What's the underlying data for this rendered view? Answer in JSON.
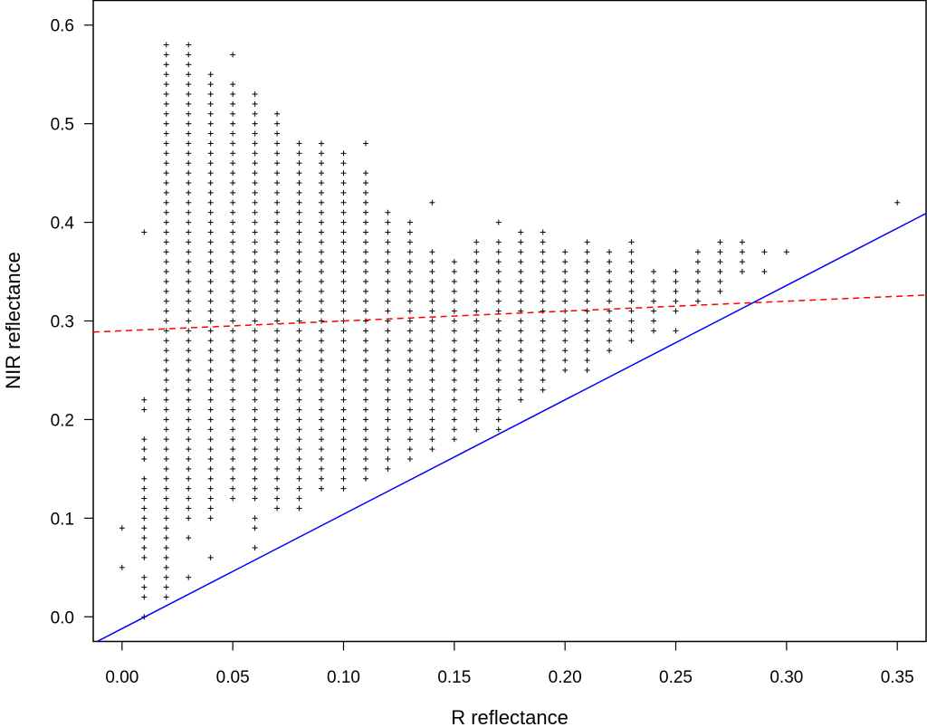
{
  "chart_data": {
    "type": "scatter",
    "title": "",
    "xlabel": "R reflectance",
    "ylabel": "NIR reflectance",
    "xlim": [
      -0.013,
      0.363
    ],
    "ylim": [
      -0.025,
      0.625
    ],
    "x_ticks": [
      "0.00",
      "0.05",
      "0.10",
      "0.15",
      "0.20",
      "0.25",
      "0.30",
      "0.35"
    ],
    "y_ticks": [
      "0.0",
      "0.1",
      "0.2",
      "0.3",
      "0.4",
      "0.5",
      "0.6"
    ],
    "grid": false,
    "marker": "+",
    "point_color": "#000000",
    "columns": [
      {
        "x": 0.0,
        "y": [
          0.05,
          0.09
        ]
      },
      {
        "x": 0.01,
        "y": [
          0.0,
          0.02,
          0.03,
          0.04,
          0.06,
          0.07,
          0.08,
          0.09,
          0.1,
          0.11,
          0.12,
          0.13,
          0.14,
          0.16,
          0.17,
          0.18,
          0.21,
          0.22,
          0.39
        ]
      },
      {
        "x": 0.02,
        "ymin": 0.02,
        "ymax": 0.58
      },
      {
        "x": 0.03,
        "ymin": 0.1,
        "ymax": 0.58,
        "extra": [
          0.04,
          0.08
        ]
      },
      {
        "x": 0.04,
        "ymin": 0.1,
        "ymax": 0.55,
        "extra": [
          0.06
        ]
      },
      {
        "x": 0.05,
        "ymin": 0.12,
        "ymax": 0.54,
        "extra": [
          0.57
        ]
      },
      {
        "x": 0.06,
        "ymin": 0.12,
        "ymax": 0.53,
        "extra": [
          0.07,
          0.09,
          0.1
        ]
      },
      {
        "x": 0.07,
        "ymin": 0.11,
        "ymax": 0.51
      },
      {
        "x": 0.08,
        "ymin": 0.11,
        "ymax": 0.48
      },
      {
        "x": 0.09,
        "ymin": 0.13,
        "ymax": 0.48
      },
      {
        "x": 0.1,
        "ymin": 0.13,
        "ymax": 0.47
      },
      {
        "x": 0.11,
        "ymin": 0.14,
        "ymax": 0.45,
        "extra": [
          0.48
        ]
      },
      {
        "x": 0.12,
        "ymin": 0.15,
        "ymax": 0.41
      },
      {
        "x": 0.13,
        "ymin": 0.16,
        "ymax": 0.4
      },
      {
        "x": 0.14,
        "ymin": 0.17,
        "ymax": 0.37,
        "extra": [
          0.42
        ]
      },
      {
        "x": 0.15,
        "ymin": 0.18,
        "ymax": 0.36
      },
      {
        "x": 0.16,
        "ymin": 0.19,
        "ymax": 0.38
      },
      {
        "x": 0.17,
        "ymin": 0.19,
        "ymax": 0.38,
        "extra": [
          0.4
        ]
      },
      {
        "x": 0.18,
        "ymin": 0.22,
        "ymax": 0.39
      },
      {
        "x": 0.19,
        "ymin": 0.23,
        "ymax": 0.39
      },
      {
        "x": 0.2,
        "ymin": 0.25,
        "ymax": 0.37
      },
      {
        "x": 0.21,
        "ymin": 0.25,
        "ymax": 0.38
      },
      {
        "x": 0.22,
        "ymin": 0.27,
        "ymax": 0.37
      },
      {
        "x": 0.23,
        "ymin": 0.28,
        "ymax": 0.38
      },
      {
        "x": 0.24,
        "ymin": 0.29,
        "ymax": 0.35
      },
      {
        "x": 0.25,
        "ymin": 0.31,
        "ymax": 0.35,
        "extra": [
          0.29
        ]
      },
      {
        "x": 0.26,
        "ymin": 0.32,
        "ymax": 0.37
      },
      {
        "x": 0.27,
        "ymin": 0.33,
        "ymax": 0.38
      },
      {
        "x": 0.28,
        "ymin": 0.35,
        "ymax": 0.38
      },
      {
        "x": 0.29,
        "y": [
          0.35,
          0.37
        ]
      },
      {
        "x": 0.3,
        "y": [
          0.37
        ]
      },
      {
        "x": 0.35,
        "y": [
          0.42
        ]
      }
    ],
    "lines": [
      {
        "style": "solid",
        "color": "#0000ff",
        "slope": 1.16,
        "intercept": -0.012
      },
      {
        "style": "dashed",
        "color": "#ff0000",
        "slope": 0.1,
        "intercept": 0.29
      }
    ]
  }
}
